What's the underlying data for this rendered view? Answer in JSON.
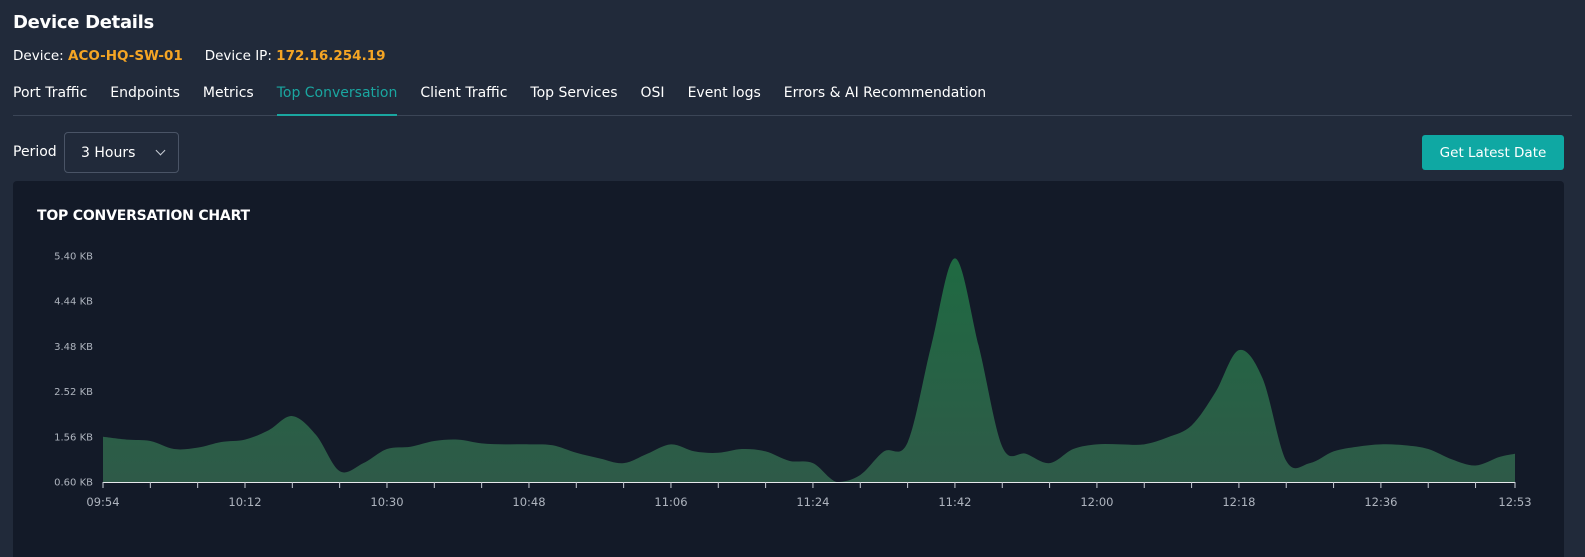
{
  "header": {
    "title": "Device Details",
    "device_label": "Device:",
    "device_value": "ACO-HQ-SW-01",
    "ip_label": "Device IP:",
    "ip_value": "172.16.254.19"
  },
  "tabs": [
    {
      "label": "Port Traffic",
      "active": false
    },
    {
      "label": "Endpoints",
      "active": false
    },
    {
      "label": "Metrics",
      "active": false
    },
    {
      "label": "Top Conversation",
      "active": true
    },
    {
      "label": "Client Traffic",
      "active": false
    },
    {
      "label": "Top Services",
      "active": false
    },
    {
      "label": "OSI",
      "active": false
    },
    {
      "label": "Event logs",
      "active": false
    },
    {
      "label": "Errors & AI Recommendation",
      "active": false
    }
  ],
  "controls": {
    "period_label": "Period",
    "period_value": "3 Hours",
    "latest_button": "Get Latest Date"
  },
  "colors": {
    "accent": "#0fa8a3",
    "device_value": "#f5a524",
    "area_fill": "#2e5a48",
    "area_peak": "#1f6a42"
  },
  "chart_data": {
    "type": "area",
    "title": "TOP CONVERSATION CHART",
    "xlabel": "",
    "ylabel": "",
    "y_ticks": [
      "0.60 KB",
      "1.56 KB",
      "2.52 KB",
      "3.48 KB",
      "4.44 KB",
      "5.40 KB"
    ],
    "ylim": [
      0.6,
      5.4
    ],
    "x_ticks": [
      "09:54",
      "10:12",
      "10:30",
      "10:48",
      "11:06",
      "11:24",
      "11:42",
      "12:00",
      "12:18",
      "12:36",
      "12:53"
    ],
    "x": [
      "09:54",
      "09:57",
      "10:00",
      "10:03",
      "10:06",
      "10:09",
      "10:12",
      "10:15",
      "10:18",
      "10:21",
      "10:24",
      "10:27",
      "10:30",
      "10:33",
      "10:36",
      "10:39",
      "10:42",
      "10:45",
      "10:48",
      "10:51",
      "10:54",
      "10:57",
      "11:00",
      "11:03",
      "11:06",
      "11:09",
      "11:12",
      "11:15",
      "11:18",
      "11:21",
      "11:24",
      "11:27",
      "11:30",
      "11:33",
      "11:36",
      "11:39",
      "11:42",
      "11:45",
      "11:48",
      "11:51",
      "11:54",
      "11:57",
      "12:00",
      "12:03",
      "12:06",
      "12:09",
      "12:12",
      "12:15",
      "12:18",
      "12:21",
      "12:24",
      "12:27",
      "12:30",
      "12:33",
      "12:36",
      "12:39",
      "12:42",
      "12:45",
      "12:48",
      "12:51",
      "12:53"
    ],
    "series": [
      {
        "values": [
          1.56,
          1.5,
          1.47,
          1.3,
          1.33,
          1.45,
          1.5,
          1.7,
          2.0,
          1.6,
          0.83,
          1.0,
          1.3,
          1.35,
          1.47,
          1.5,
          1.42,
          1.4,
          1.4,
          1.38,
          1.22,
          1.1,
          1.0,
          1.2,
          1.4,
          1.25,
          1.22,
          1.3,
          1.25,
          1.05,
          1.0,
          0.6,
          0.75,
          1.25,
          1.44,
          3.5,
          5.35,
          3.5,
          1.35,
          1.2,
          1.0,
          1.3,
          1.4,
          1.4,
          1.4,
          1.55,
          1.8,
          2.5,
          3.4,
          2.8,
          1.05,
          1.0,
          1.25,
          1.35,
          1.4,
          1.38,
          1.3,
          1.08,
          0.95,
          1.13,
          1.2
        ]
      }
    ]
  }
}
